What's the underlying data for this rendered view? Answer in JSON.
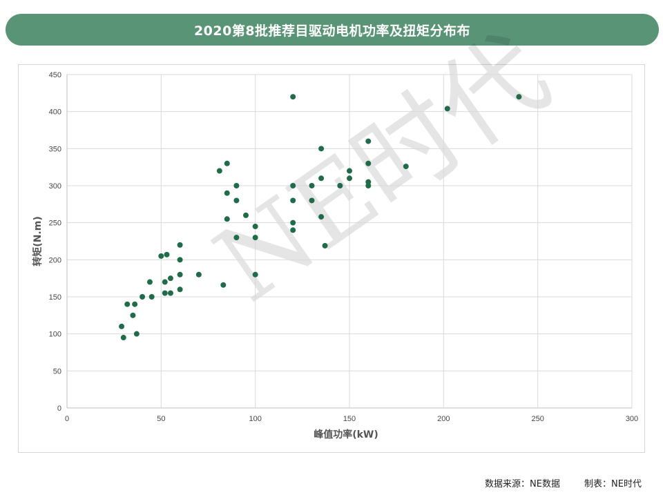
{
  "header": {
    "title": "2020第8批推荐目驱动电机功率及扭矩分布布"
  },
  "watermark": "NE时代",
  "footer": {
    "source": "数据来源：NE数据",
    "maker": "制表：NE时代"
  },
  "colors": {
    "banner": "#5a9476",
    "point": "#1f6b4a",
    "grid": "#d9d9d9"
  },
  "chart_data": {
    "type": "scatter",
    "title": "2020第8批推荐目驱动电机功率及扭矩分布布",
    "xlabel": "峰值功率(kW)",
    "ylabel": "转矩(N.m)",
    "xlim": [
      0,
      300
    ],
    "ylim": [
      0,
      450
    ],
    "xticks": [
      0,
      50,
      100,
      150,
      200,
      250,
      300
    ],
    "yticks": [
      0,
      50,
      100,
      150,
      200,
      250,
      300,
      350,
      400,
      450
    ],
    "grid": true,
    "legend": "none",
    "points": [
      [
        29,
        110
      ],
      [
        30,
        95
      ],
      [
        32,
        140
      ],
      [
        35,
        125
      ],
      [
        36,
        140
      ],
      [
        37,
        100
      ],
      [
        40,
        150
      ],
      [
        44,
        170
      ],
      [
        45,
        150
      ],
      [
        50,
        205
      ],
      [
        52,
        170
      ],
      [
        52,
        155
      ],
      [
        53,
        207
      ],
      [
        55,
        175
      ],
      [
        55,
        155
      ],
      [
        60,
        220
      ],
      [
        60,
        200
      ],
      [
        60,
        180
      ],
      [
        60,
        160
      ],
      [
        70,
        180
      ],
      [
        81,
        320
      ],
      [
        83,
        166
      ],
      [
        85,
        330
      ],
      [
        85,
        290
      ],
      [
        85,
        255
      ],
      [
        90,
        300
      ],
      [
        90,
        280
      ],
      [
        90,
        230
      ],
      [
        95,
        260
      ],
      [
        100,
        245
      ],
      [
        100,
        230
      ],
      [
        100,
        180
      ],
      [
        120,
        420
      ],
      [
        120,
        300
      ],
      [
        120,
        280
      ],
      [
        120,
        250
      ],
      [
        120,
        240
      ],
      [
        130,
        300
      ],
      [
        130,
        280
      ],
      [
        135,
        350
      ],
      [
        135,
        310
      ],
      [
        135,
        258
      ],
      [
        137,
        219
      ],
      [
        145,
        300
      ],
      [
        150,
        320
      ],
      [
        150,
        310
      ],
      [
        160,
        360
      ],
      [
        160,
        330
      ],
      [
        160,
        305
      ],
      [
        160,
        300
      ],
      [
        180,
        326
      ],
      [
        202,
        404
      ],
      [
        240,
        420
      ]
    ]
  }
}
